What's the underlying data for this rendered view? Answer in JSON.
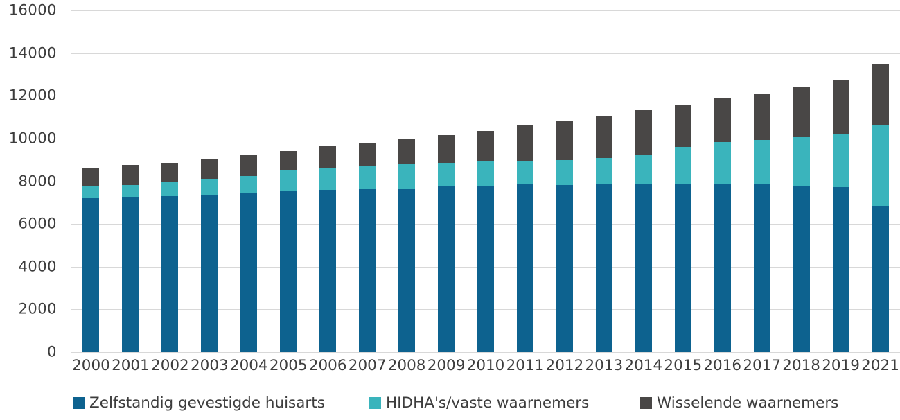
{
  "chart_data": {
    "type": "bar",
    "stacked": true,
    "title": "",
    "xlabel": "",
    "ylabel": "",
    "grid": "horizontal",
    "legend_position": "bottom",
    "ylim": [
      0,
      16000
    ],
    "y_ticks": [
      0,
      2000,
      4000,
      6000,
      8000,
      10000,
      12000,
      14000,
      16000
    ],
    "y_tick_labels": [
      "0",
      "2000",
      "4000",
      "6000",
      "8000",
      "10000",
      "12000",
      "14000",
      "16000"
    ],
    "categories": [
      "2000",
      "2001",
      "2002",
      "2003",
      "2004",
      "2005",
      "2006",
      "2007",
      "2008",
      "2009",
      "2010",
      "2011",
      "2012",
      "2013",
      "2014",
      "2015",
      "2016",
      "2017",
      "2018",
      "2019",
      "2021"
    ],
    "series": [
      {
        "name": "Zelfstandig gevestigde huisarts",
        "color": "#0d628f",
        "values": [
          7210,
          7265,
          7315,
          7370,
          7425,
          7515,
          7600,
          7625,
          7675,
          7755,
          7805,
          7840,
          7820,
          7840,
          7860,
          7870,
          7890,
          7890,
          7805,
          7730,
          6845
        ]
      },
      {
        "name": "HIDHA's/vaste waarnemers",
        "color": "#3ab4bc",
        "values": [
          575,
          570,
          665,
          740,
          825,
          975,
          1030,
          1105,
          1160,
          1110,
          1150,
          1085,
          1155,
          1245,
          1355,
          1735,
          1950,
          2055,
          2305,
          2465,
          3810
        ]
      },
      {
        "name": "Wisselende waarnemers",
        "color": "#494746",
        "values": [
          815,
          925,
          890,
          920,
          970,
          920,
          1030,
          1060,
          1135,
          1300,
          1405,
          1695,
          1840,
          1965,
          2110,
          1990,
          2035,
          2165,
          2330,
          2535,
          2815
        ]
      }
    ]
  },
  "colors": {
    "background": "#ffffff",
    "gridline": "#d8d8d8",
    "axis_text": "#3d3d3d",
    "series_blue": "#0d628f",
    "series_teal": "#3ab4bc",
    "series_gray": "#494746"
  }
}
